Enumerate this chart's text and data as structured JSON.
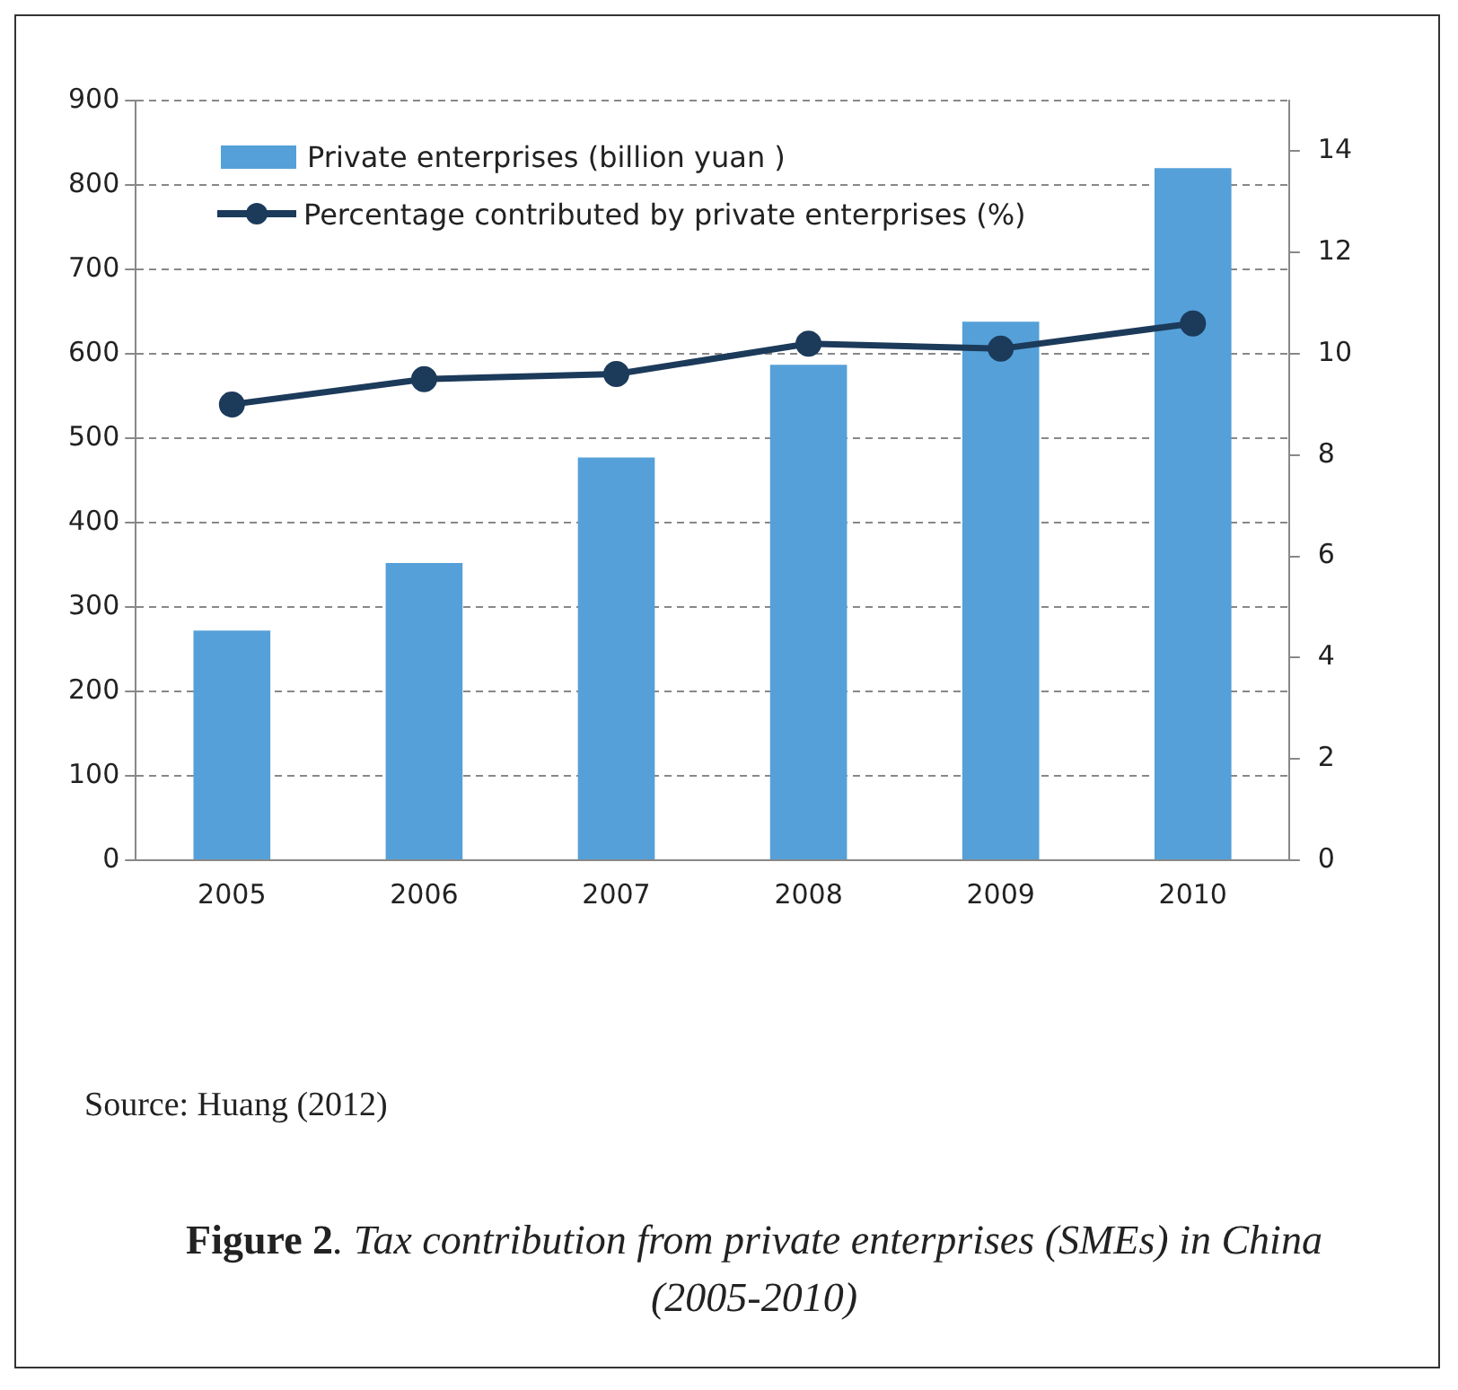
{
  "chart_data": {
    "type": "bar",
    "title": "Figure 2. Tax contribution from private enterprises (SMEs) in China (2005-2010)",
    "annotations": [
      "Source: Huang (2012)"
    ],
    "categories": [
      "2005",
      "2006",
      "2007",
      "2008",
      "2009",
      "2010"
    ],
    "series": [
      {
        "name": "Private enterprises (billion yuan )",
        "color": "#55a0d8",
        "values": [
          272,
          352,
          477,
          587,
          638,
          820
        ]
      },
      {
        "name": "Percentage contributed by private enterprises (%)",
        "type": "line",
        "axis": "y2",
        "color": "#1c3a5a",
        "values": [
          9.0,
          9.5,
          9.6,
          10.2,
          10.1,
          10.6
        ]
      }
    ],
    "ylim": [
      0,
      900
    ],
    "yticks": [
      0,
      100,
      200,
      300,
      400,
      500,
      600,
      700,
      800,
      900
    ],
    "y2lim": [
      0,
      15
    ],
    "y2ticks": [
      0,
      2,
      4,
      6,
      8,
      10,
      12,
      14
    ],
    "grid": "y",
    "legend": "top left",
    "marker": "circle",
    "line_style": "solid"
  }
}
